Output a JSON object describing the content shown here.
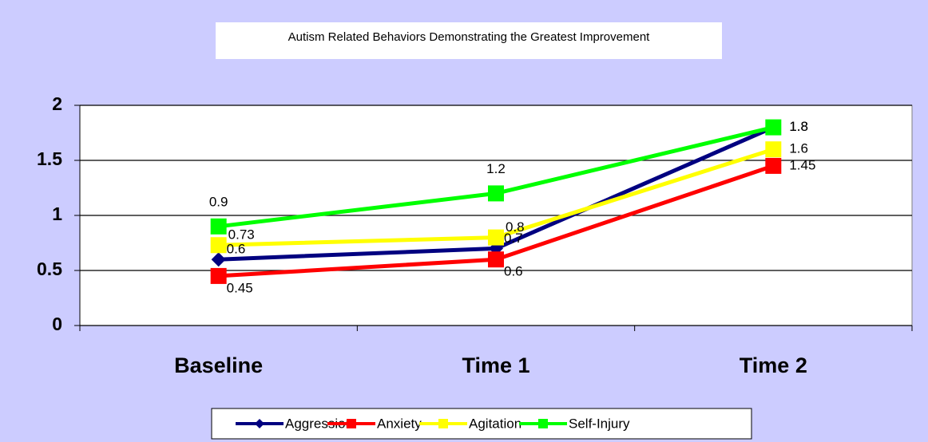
{
  "chart_data": {
    "type": "line",
    "title": "Autism Related Behaviors Demonstrating the Greatest Improvement",
    "categories": [
      "Baseline",
      "Time 1",
      "Time 2"
    ],
    "series": [
      {
        "name": "Aggression",
        "color": "#000080",
        "marker": "diamond",
        "values": [
          0.6,
          0.7,
          1.8
        ]
      },
      {
        "name": "Anxiety",
        "color": "#ff0000",
        "marker": "square",
        "values": [
          0.45,
          0.6,
          1.45
        ]
      },
      {
        "name": "Agitation",
        "color": "#ffff00",
        "marker": "square",
        "values": [
          0.73,
          0.8,
          1.6
        ]
      },
      {
        "name": "Self-Injury",
        "color": "#00ff00",
        "marker": "square",
        "values": [
          0.9,
          1.2,
          1.8
        ]
      }
    ],
    "ylim": [
      0,
      2
    ],
    "yticks": [
      0,
      0.5,
      1,
      1.5,
      2
    ],
    "grid": true,
    "legend": "bottom",
    "data_labels": true
  }
}
